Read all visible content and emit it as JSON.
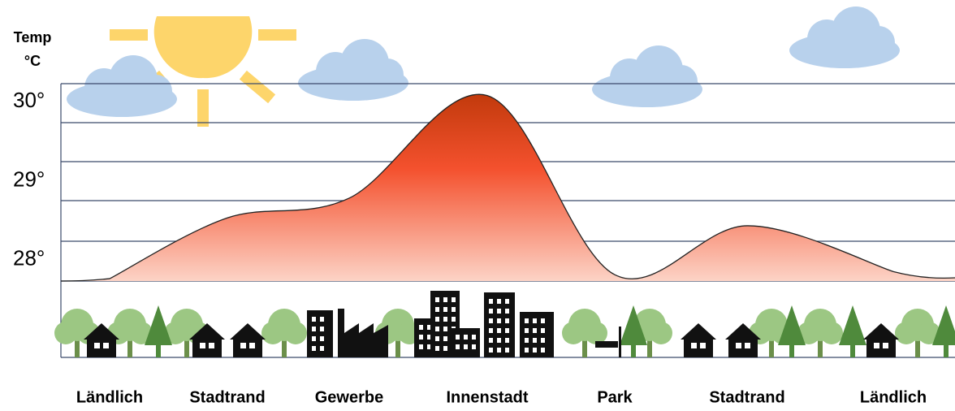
{
  "chart_data": {
    "type": "area",
    "title": "Temp",
    "y_label": "°C",
    "categories": [
      "Ländlich",
      "Stadtrand",
      "Gewerbe",
      "Innenstadt",
      "Park",
      "Stadtrand",
      "Ländlich"
    ],
    "values": [
      27.78,
      28.55,
      28.8,
      30.1,
      27.83,
      28.45,
      27.87
    ],
    "ylim": [
      27.75,
      30.25
    ],
    "yticks": [
      {
        "value": 28,
        "label": "28°"
      },
      {
        "value": 29,
        "label": "29°"
      },
      {
        "value": 30,
        "label": "30°"
      }
    ],
    "color": "#e8482a"
  }
}
